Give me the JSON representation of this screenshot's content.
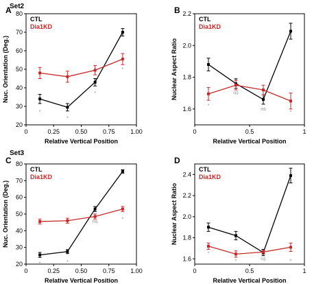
{
  "set_labels": [
    "Set2",
    "Set3"
  ],
  "colors": {
    "ctl": "#000000",
    "kd": "#c62828",
    "annotation": "#888888"
  },
  "chart_data": [
    {
      "panel": "A",
      "type": "line",
      "xlabel": "Relative Vertical Position",
      "ylabel": "Nuc. Orientation (Deg.)",
      "xlim": [
        0,
        1
      ],
      "ylim": [
        20,
        80
      ],
      "xticks": [
        0,
        0.25,
        0.5,
        0.75,
        1
      ],
      "xtick_labels": [
        "0",
        "0.25",
        "0.50",
        "0.75",
        "1.00"
      ],
      "yticks": [
        20,
        30,
        40,
        50,
        60,
        70,
        80
      ],
      "ytick_labels": [
        "20",
        "30",
        "40",
        "50",
        "60",
        "70",
        "80"
      ],
      "x": [
        0.125,
        0.375,
        0.625,
        0.875
      ],
      "series": [
        {
          "name": "CTL",
          "values": [
            34,
            29.5,
            43,
            70
          ],
          "errors": [
            2.5,
            2,
            2,
            2
          ]
        },
        {
          "name": "Dia1KD",
          "values": [
            48,
            46,
            49.5,
            55.5
          ],
          "errors": [
            3,
            3,
            2.5,
            3
          ]
        }
      ],
      "annotations": [
        {
          "x": 0.125,
          "y": 27,
          "text": "*"
        },
        {
          "x": 0.375,
          "y": 23.5,
          "text": "*"
        },
        {
          "x": 0.625,
          "y": 37,
          "text": "*"
        },
        {
          "x": 0.875,
          "y": 50,
          "text": "*"
        }
      ]
    },
    {
      "panel": "B",
      "type": "line",
      "xlabel": "Relative Vertical Position",
      "ylabel": "Nuclear Aspect Ratio",
      "xlim": [
        0,
        1
      ],
      "ylim": [
        1.5,
        2.2
      ],
      "xticks": [
        0,
        0.5,
        1
      ],
      "xtick_labels": [
        "0",
        "0.5",
        "1"
      ],
      "yticks": [
        1.6,
        1.8,
        2.0,
        2.2
      ],
      "ytick_labels": [
        "1.6",
        "1.8",
        "2.0",
        "2.2"
      ],
      "x": [
        0.125,
        0.375,
        0.625,
        0.875
      ],
      "series": [
        {
          "name": "CTL",
          "values": [
            1.88,
            1.76,
            1.66,
            2.09
          ],
          "errors": [
            0.04,
            0.03,
            0.03,
            0.05
          ]
        },
        {
          "name": "Dia1KD",
          "values": [
            1.695,
            1.75,
            1.72,
            1.65
          ],
          "errors": [
            0.04,
            0.03,
            0.03,
            0.05
          ]
        }
      ],
      "annotations": [
        {
          "x": 0.125,
          "y": 1.62,
          "text": "*"
        },
        {
          "x": 0.375,
          "y": 1.7,
          "text": "ns"
        },
        {
          "x": 0.625,
          "y": 1.6,
          "text": "ns"
        },
        {
          "x": 0.875,
          "y": 1.58,
          "text": "*"
        }
      ]
    },
    {
      "panel": "C",
      "type": "line",
      "xlabel": "Relative Vertical Position",
      "ylabel": "Nuc. Orientation (Deg.)",
      "xlim": [
        0,
        1
      ],
      "ylim": [
        20,
        80
      ],
      "xticks": [
        0,
        0.25,
        0.5,
        0.75,
        1
      ],
      "xtick_labels": [
        "0",
        "0.25",
        "0.50",
        "0.75",
        "1.00"
      ],
      "yticks": [
        20,
        30,
        40,
        50,
        60,
        70,
        80
      ],
      "ytick_labels": [
        "20",
        "30",
        "40",
        "50",
        "60",
        "70",
        "80"
      ],
      "x": [
        0.125,
        0.375,
        0.625,
        0.875
      ],
      "series": [
        {
          "name": "CTL",
          "values": [
            25.5,
            27.5,
            53,
            75.5
          ],
          "errors": [
            1.5,
            1.2,
            1.5,
            1
          ]
        },
        {
          "name": "Dia1KD",
          "values": [
            45.5,
            46,
            48.5,
            53
          ],
          "errors": [
            1.5,
            1.5,
            1.5,
            1.5
          ]
        }
      ],
      "annotations": [
        {
          "x": 0.125,
          "y": 20.5,
          "text": "*"
        },
        {
          "x": 0.375,
          "y": 21,
          "text": "*"
        },
        {
          "x": 0.625,
          "y": 45.5,
          "text": "ns"
        },
        {
          "x": 0.875,
          "y": 47,
          "text": "*"
        }
      ]
    },
    {
      "panel": "D",
      "type": "line",
      "xlabel": "Relative Vertical Position",
      "ylabel": "Nuclear Aspect Ratio",
      "xlim": [
        0,
        1
      ],
      "ylim": [
        1.55,
        2.5
      ],
      "xticks": [
        0,
        0.5,
        1
      ],
      "xtick_labels": [
        "0",
        "0.5",
        "1"
      ],
      "yticks": [
        1.6,
        1.8,
        2.0,
        2.2,
        2.4
      ],
      "ytick_labels": [
        "1.6",
        "1.8",
        "2.0",
        "2.2",
        "2.4"
      ],
      "x": [
        0.125,
        0.375,
        0.625,
        0.875
      ],
      "series": [
        {
          "name": "CTL",
          "values": [
            1.9,
            1.82,
            1.66,
            2.39
          ],
          "errors": [
            0.04,
            0.04,
            0.03,
            0.07
          ]
        },
        {
          "name": "Dia1KD",
          "values": [
            1.72,
            1.645,
            1.665,
            1.71
          ],
          "errors": [
            0.03,
            0.03,
            0.02,
            0.04
          ]
        }
      ],
      "annotations": [
        {
          "x": 0.125,
          "y": 1.65,
          "text": "*"
        },
        {
          "x": 0.375,
          "y": 1.58,
          "text": "*"
        },
        {
          "x": 0.625,
          "y": 1.6,
          "text": "ns"
        },
        {
          "x": 0.875,
          "y": 1.58,
          "text": "*"
        }
      ]
    }
  ]
}
